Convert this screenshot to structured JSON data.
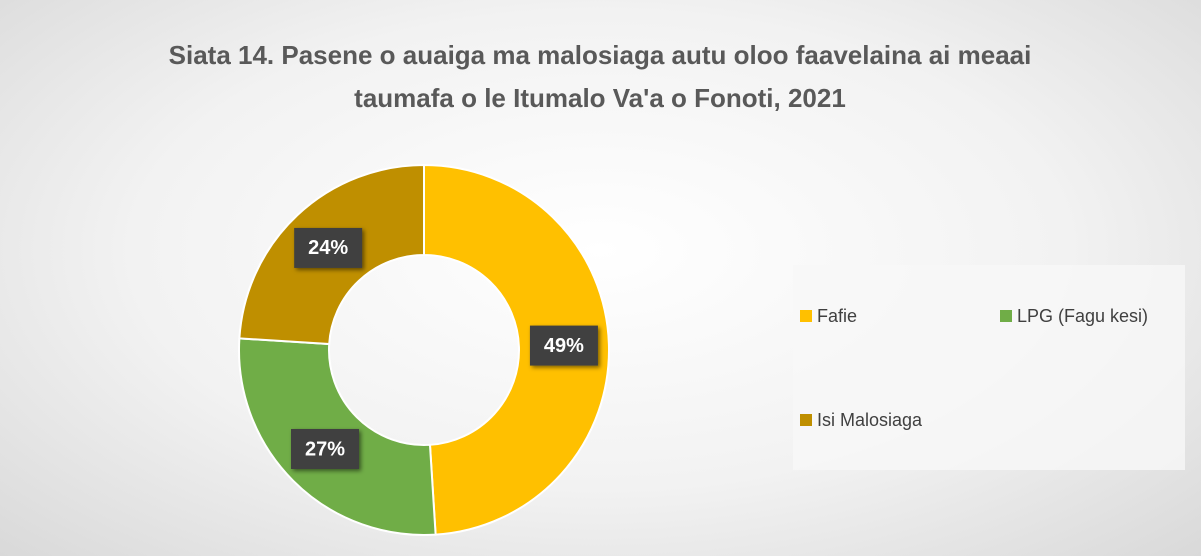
{
  "chart_data": {
    "type": "donut",
    "title": "Siata 14. Pasene o auaiga ma malosiaga autu oloo faavelaina ai meaai taumafa o le Itumalo Va'a o Fonoti, 2021",
    "categories": [
      "Fafie",
      "LPG (Fagu kesi)",
      "Isi Malosiaga"
    ],
    "values": [
      49,
      27,
      24
    ],
    "value_labels": [
      "49%",
      "27%",
      "24%"
    ],
    "colors": [
      "#ffc000",
      "#70ad47",
      "#bf8f00"
    ],
    "legend": "right"
  }
}
